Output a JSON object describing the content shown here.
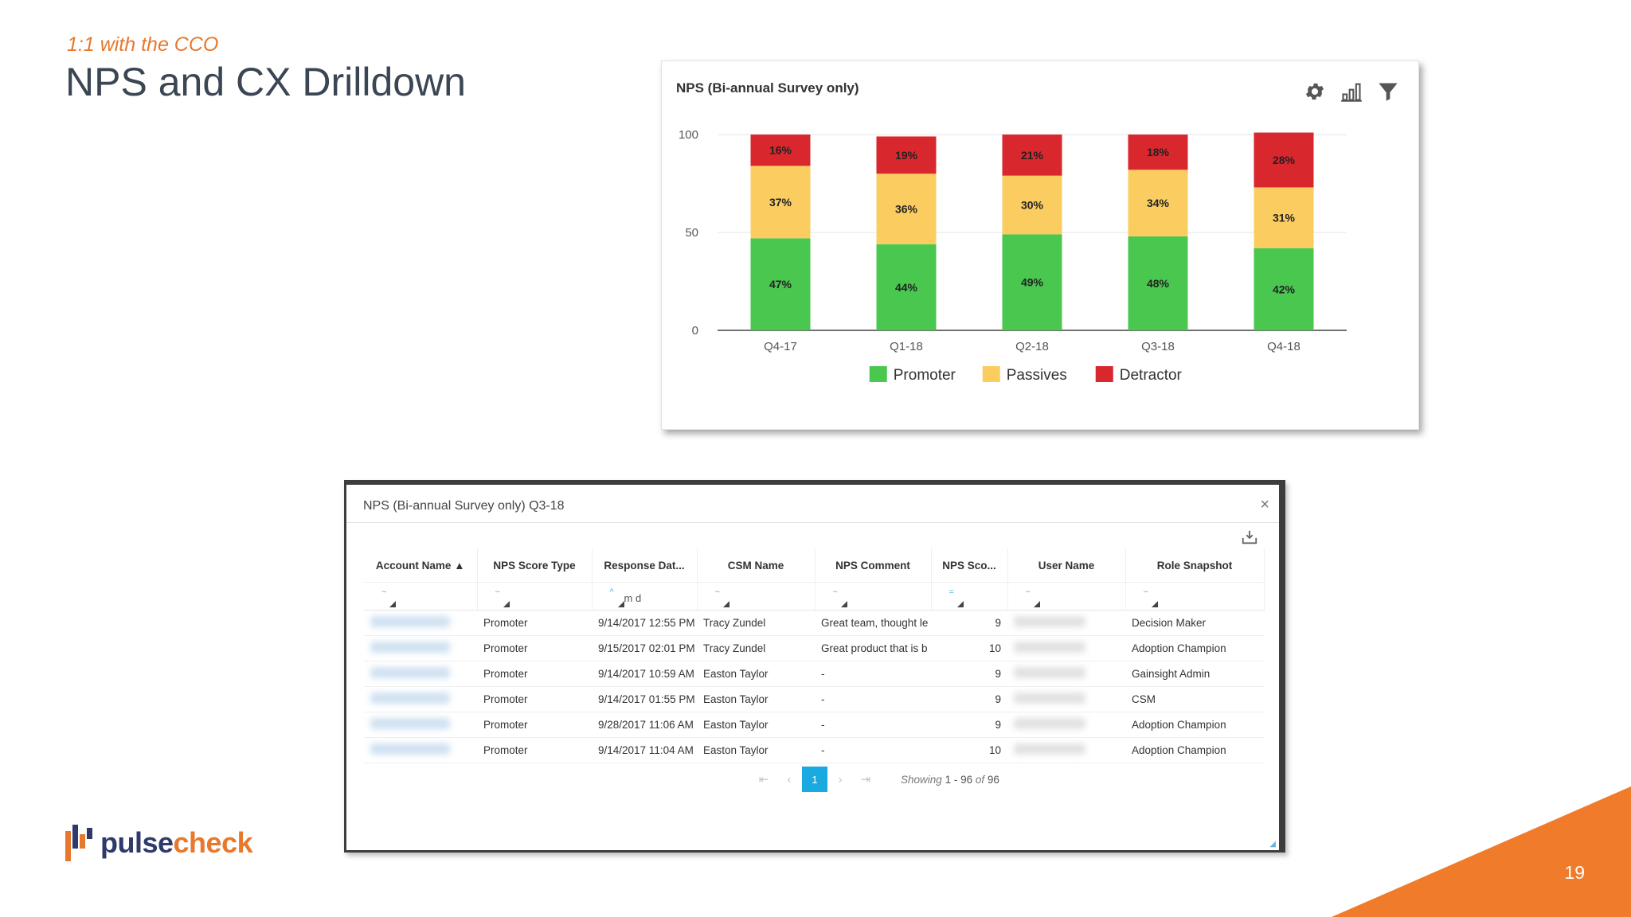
{
  "slide": {
    "subtitle": "1:1 with the CCO",
    "title": "NPS and CX Drilldown",
    "page_number": "19"
  },
  "chart_card": {
    "title": "NPS (Bi-annual Survey only)",
    "tools": [
      "gear-icon",
      "chart-type-icon",
      "filter-icon"
    ]
  },
  "chart_data": {
    "type": "bar",
    "stacked": true,
    "title": "NPS (Bi-annual Survey only)",
    "categories": [
      "Q4-17",
      "Q1-18",
      "Q2-18",
      "Q3-18",
      "Q4-18"
    ],
    "series": [
      {
        "name": "Promoter",
        "color": "#49c74f",
        "values": [
          47,
          44,
          49,
          48,
          42
        ]
      },
      {
        "name": "Passives",
        "color": "#fbcd61",
        "values": [
          37,
          36,
          30,
          34,
          31
        ]
      },
      {
        "name": "Detractor",
        "color": "#d9272e",
        "values": [
          16,
          19,
          21,
          18,
          28
        ]
      }
    ],
    "yticks": [
      0,
      50,
      100
    ],
    "ylim": [
      0,
      100
    ],
    "legend_position": "bottom",
    "grid": true
  },
  "modal": {
    "title": "NPS (Bi-annual Survey only) Q3-18",
    "close_label": "×",
    "columns": [
      "Account Name",
      "NPS Score Type",
      "Response Dat...",
      "CSM Name",
      "NPS Comment",
      "NPS Sco...",
      "User Name",
      "Role Snapshot"
    ],
    "filter_text": "m      d",
    "rows": [
      {
        "score_type": "Promoter",
        "date": "9/14/2017 12:55 PM",
        "csm": "Tracy Zundel",
        "comment": "Great team, thought le",
        "score": "9",
        "role": "Decision Maker"
      },
      {
        "score_type": "Promoter",
        "date": "9/15/2017 02:01 PM",
        "csm": "Tracy Zundel",
        "comment": "Great product that is b",
        "score": "10",
        "role": "Adoption Champion"
      },
      {
        "score_type": "Promoter",
        "date": "9/14/2017 10:59 AM",
        "csm": "Easton Taylor",
        "comment": "-",
        "score": "9",
        "role": "Gainsight Admin"
      },
      {
        "score_type": "Promoter",
        "date": "9/14/2017 01:55 PM",
        "csm": "Easton Taylor",
        "comment": "-",
        "score": "9",
        "role": "CSM"
      },
      {
        "score_type": "Promoter",
        "date": "9/28/2017 11:06 AM",
        "csm": "Easton Taylor",
        "comment": "-",
        "score": "9",
        "role": "Adoption Champion"
      },
      {
        "score_type": "Promoter",
        "date": "9/14/2017 11:04 AM",
        "csm": "Easton Taylor",
        "comment": "-",
        "score": "10",
        "role": "Adoption Champion"
      }
    ],
    "pager": {
      "current_page": "1",
      "showing_label": "Showing",
      "range": "1 - 96",
      "of_label": "of",
      "total": "96"
    }
  },
  "footer": {
    "logo_part1": "pulse",
    "logo_part2": "check"
  },
  "colors": {
    "accent_orange": "#e8782c",
    "title_gray": "#3b4654",
    "pager_active": "#1ba9e1"
  }
}
